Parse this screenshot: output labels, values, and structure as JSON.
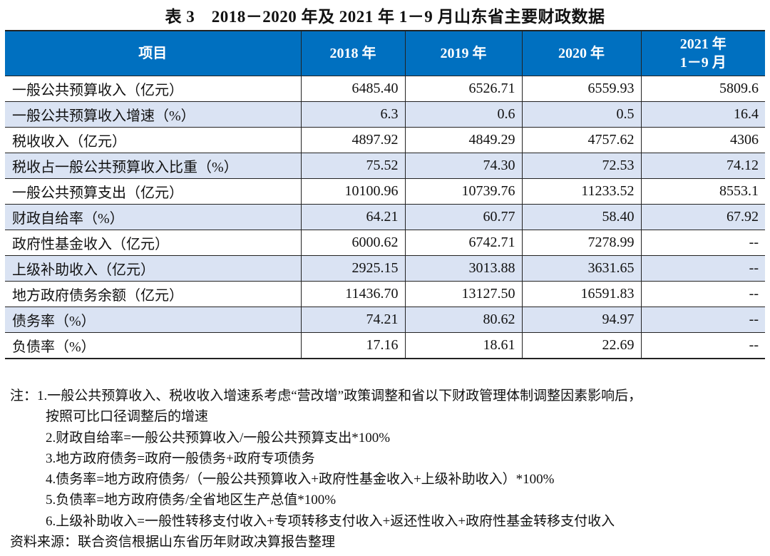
{
  "title": "表 3　2018－2020 年及 2021 年 1－9 月山东省主要财政数据",
  "table": {
    "headers": [
      "项目",
      "2018 年",
      "2019 年",
      "2020 年",
      "2021 年",
      "1－9 月"
    ],
    "rows": [
      [
        "一般公共预算收入（亿元）",
        "6485.40",
        "6526.71",
        "6559.93",
        "5809.6"
      ],
      [
        "一般公共预算收入增速（%）",
        "6.3",
        "0.6",
        "0.5",
        "16.4"
      ],
      [
        "税收收入（亿元）",
        "4897.92",
        "4849.29",
        "4757.62",
        "4306"
      ],
      [
        "税收占一般公共预算收入比重（%）",
        "75.52",
        "74.30",
        "72.53",
        "74.12"
      ],
      [
        "一般公共预算支出（亿元）",
        "10100.96",
        "10739.76",
        "11233.52",
        "8553.1"
      ],
      [
        "财政自给率（%）",
        "64.21",
        "60.77",
        "58.40",
        "67.92"
      ],
      [
        "政府性基金收入（亿元）",
        "6000.62",
        "6742.71",
        "7278.99",
        "--"
      ],
      [
        "上级补助收入（亿元）",
        "2925.15",
        "3013.88",
        "3631.65",
        "--"
      ],
      [
        "地方政府债务余额（亿元）",
        "11436.70",
        "13127.50",
        "16591.83",
        "--"
      ],
      [
        "债务率（%）",
        "74.21",
        "80.62",
        "94.97",
        "--"
      ],
      [
        "负债率（%）",
        "17.16",
        "18.61",
        "22.69",
        "--"
      ]
    ]
  },
  "notes": [
    "注：1.一般公共预算收入、税收收入增速系考虑“营改增”政策调整和省以下财政管理体制调整因素影响后，",
    "按照可比口径调整后的增速",
    "2.财政自给率=一般公共预算收入/一般公共预算支出*100%",
    "3.地方政府债务=政府一般债务+政府专项债务",
    "4.债务率=地方政府债务/（一般公共预算收入+政府性基金收入+上级补助收入）*100%",
    "5.负债率=地方政府债务/全省地区生产总值*100%",
    "6.上级补助收入=一般性转移支付收入+专项转移支付收入+返还性收入+政府性基金转移支付收入"
  ],
  "source": "资料来源：联合资信根据山东省历年财政决算报告整理",
  "colors": {
    "header_bg": "#0070c0",
    "alt_row_bg": "#dae3f3"
  }
}
